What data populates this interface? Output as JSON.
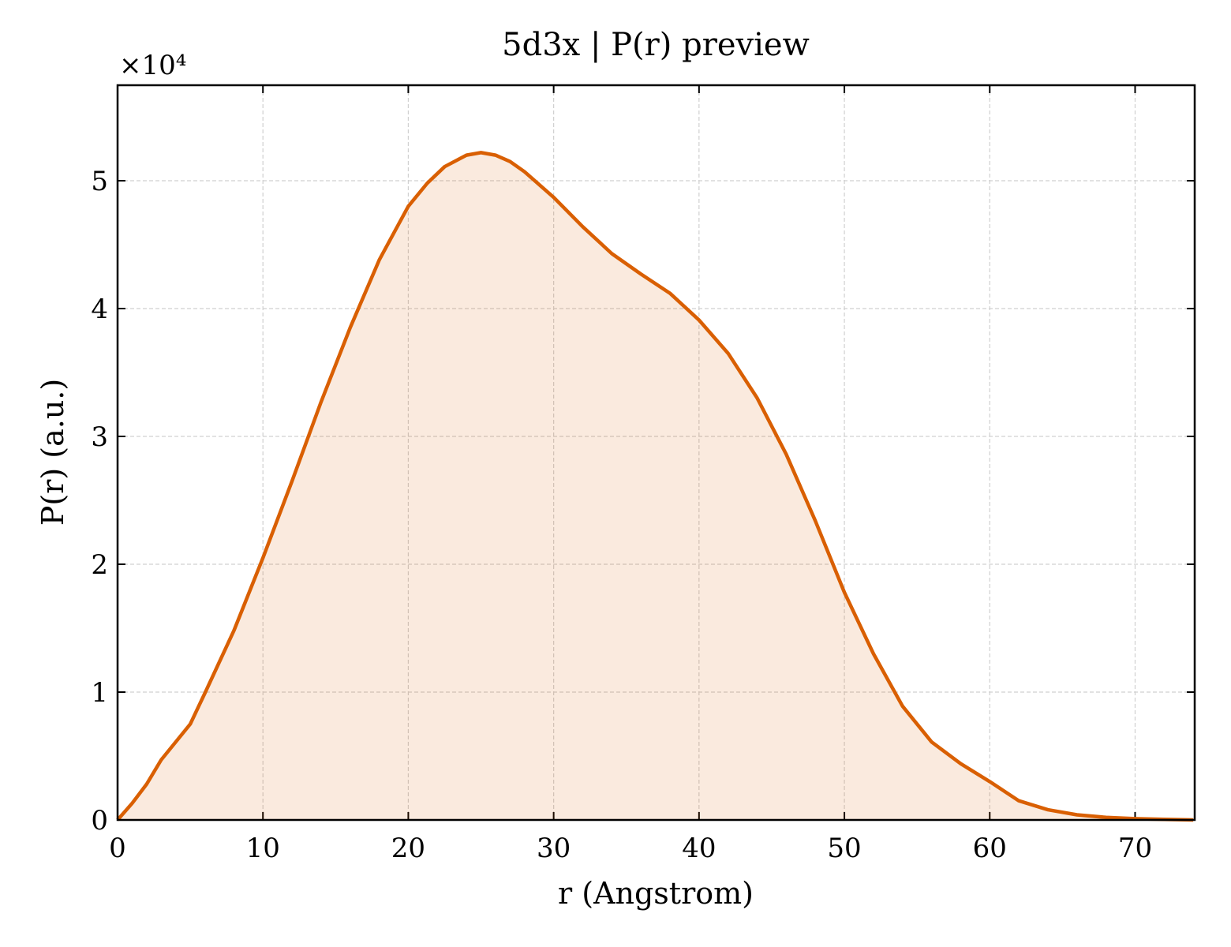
{
  "chart_data": {
    "type": "line",
    "title": "5d3x | P(r) preview",
    "x_label": "r (Angstrom)",
    "y_label": "P(r) (a.u.)",
    "y_offset_label": "×10⁴",
    "x": [
      0,
      1,
      2,
      3,
      5,
      6,
      8,
      10,
      12,
      14,
      16,
      18,
      20,
      21.3,
      22.5,
      24,
      25,
      26,
      27,
      28,
      30,
      32,
      34,
      36,
      38,
      40,
      42,
      44,
      46,
      48,
      50,
      52,
      54,
      56,
      58,
      60,
      62,
      64,
      66,
      68,
      70,
      72,
      74
    ],
    "series": [
      {
        "name": "P(r)",
        "color": "#d95f02",
        "values": [
          0,
          0.13,
          0.28,
          0.47,
          0.75,
          0.99,
          1.48,
          2.05,
          2.65,
          3.27,
          3.85,
          4.38,
          4.8,
          4.98,
          5.11,
          5.2,
          5.22,
          5.2,
          5.15,
          5.07,
          4.87,
          4.64,
          4.43,
          4.27,
          4.12,
          3.91,
          3.65,
          3.3,
          2.86,
          2.34,
          1.78,
          1.3,
          0.89,
          0.61,
          0.44,
          0.3,
          0.15,
          0.08,
          0.04,
          0.02,
          0.01,
          0.005,
          0
        ]
      }
    ],
    "fill": true,
    "xlim": [
      0,
      74.1
    ],
    "ylim": [
      0,
      5.747
    ],
    "xticks": [
      0,
      10,
      20,
      30,
      40,
      50,
      60,
      70
    ],
    "yticks": [
      0,
      1,
      2,
      3,
      4,
      5
    ],
    "grid": true
  }
}
